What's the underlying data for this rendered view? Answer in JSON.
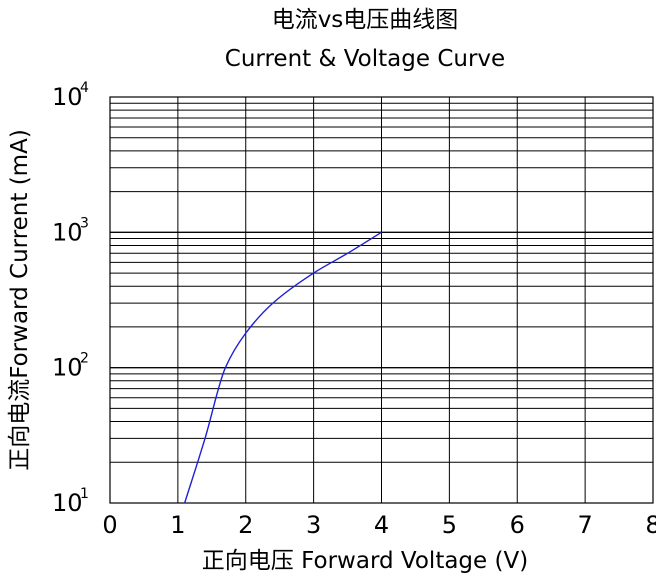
{
  "chart_data": {
    "type": "line",
    "title": "电流vs电压曲线图",
    "subtitle": "Current & Voltage Curve",
    "xlabel": "正向电压 Forward Voltage (V)",
    "ylabel": "正向电流Forward Current (mA)",
    "xlim": [
      0,
      8
    ],
    "ylim": [
      10,
      10000
    ],
    "yscale": "log",
    "x_ticks": [
      "0",
      "1",
      "2",
      "3",
      "4",
      "5",
      "6",
      "7",
      "8"
    ],
    "y_ticks": [
      {
        "base": "10",
        "exp": "1"
      },
      {
        "base": "10",
        "exp": "2"
      },
      {
        "base": "10",
        "exp": "3"
      },
      {
        "base": "10",
        "exp": "4"
      }
    ],
    "grid": true,
    "series": [
      {
        "color": "#1f1fd6",
        "x": [
          1.1,
          1.4,
          1.7,
          2.0,
          2.4,
          3.0,
          3.5,
          4.0
        ],
        "y": [
          10,
          30,
          100,
          180,
          300,
          500,
          700,
          1000
        ]
      }
    ]
  }
}
